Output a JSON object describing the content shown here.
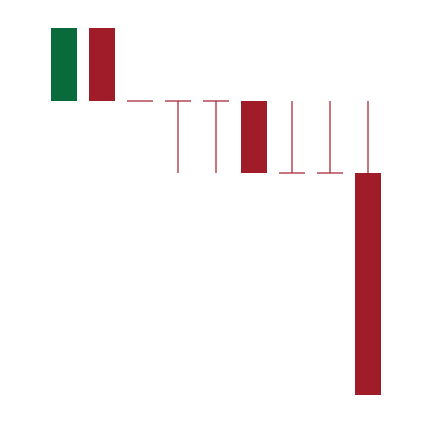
{
  "chart_data": {
    "type": "candlestick",
    "open": [
      309,
      382,
      309,
      309,
      309,
      309,
      237,
      237,
      237
    ],
    "high": [
      382,
      382,
      309,
      309,
      309,
      309,
      309,
      309,
      309
    ],
    "low": [
      309,
      309,
      309,
      237,
      237,
      237,
      237,
      237,
      15
    ],
    "close": [
      382,
      309,
      309,
      309,
      309,
      237,
      237,
      237,
      15
    ],
    "up_color": "#096b3b",
    "down_color": "#a01c28",
    "ylim": [
      0,
      400
    ]
  }
}
